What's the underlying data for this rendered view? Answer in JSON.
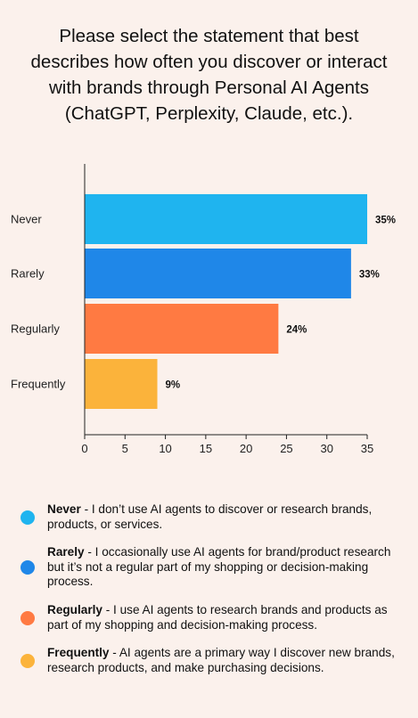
{
  "title": "Please select the statement that best describes how often you discover or interact with brands through Personal AI Agents (ChatGPT, Perplexity, Claude, etc.).",
  "chart_data": {
    "type": "bar",
    "orientation": "horizontal",
    "title": "Please select the statement that best describes how often you discover or interact with brands through Personal AI Agents (ChatGPT, Perplexity, Claude, etc.).",
    "categories": [
      "Never",
      "Rarely",
      "Regularly",
      "Frequently"
    ],
    "values": [
      35,
      33,
      24,
      9
    ],
    "value_labels": [
      "35%",
      "33%",
      "24%",
      "9%"
    ],
    "colors": [
      "#1fb4ef",
      "#1f87e8",
      "#ff7a42",
      "#fbb33b"
    ],
    "xlim": [
      0,
      35
    ],
    "xticks": [
      0,
      5,
      10,
      15,
      20,
      25,
      30,
      35
    ],
    "xlabel": "",
    "ylabel": "",
    "grid": false,
    "legend_position": "bottom"
  },
  "legend": [
    {
      "label": "Never",
      "text": " - I don’t use AI agents to discover or research brands, products, or services.",
      "color": "#1fb4ef"
    },
    {
      "label": "Rarely",
      "text": " - I occasionally use AI agents for brand/product research but it’s not a regular part of my shopping or decision-making process.",
      "color": "#1f87e8"
    },
    {
      "label": "Regularly",
      "text": " - I use AI agents to research brands and products as part of my shopping and decision-making process.",
      "color": "#ff7a42"
    },
    {
      "label": "Frequently",
      "text": " - AI agents are a primary way I discover new brands, research products, and make purchasing decisions.",
      "color": "#fbb33b"
    }
  ]
}
